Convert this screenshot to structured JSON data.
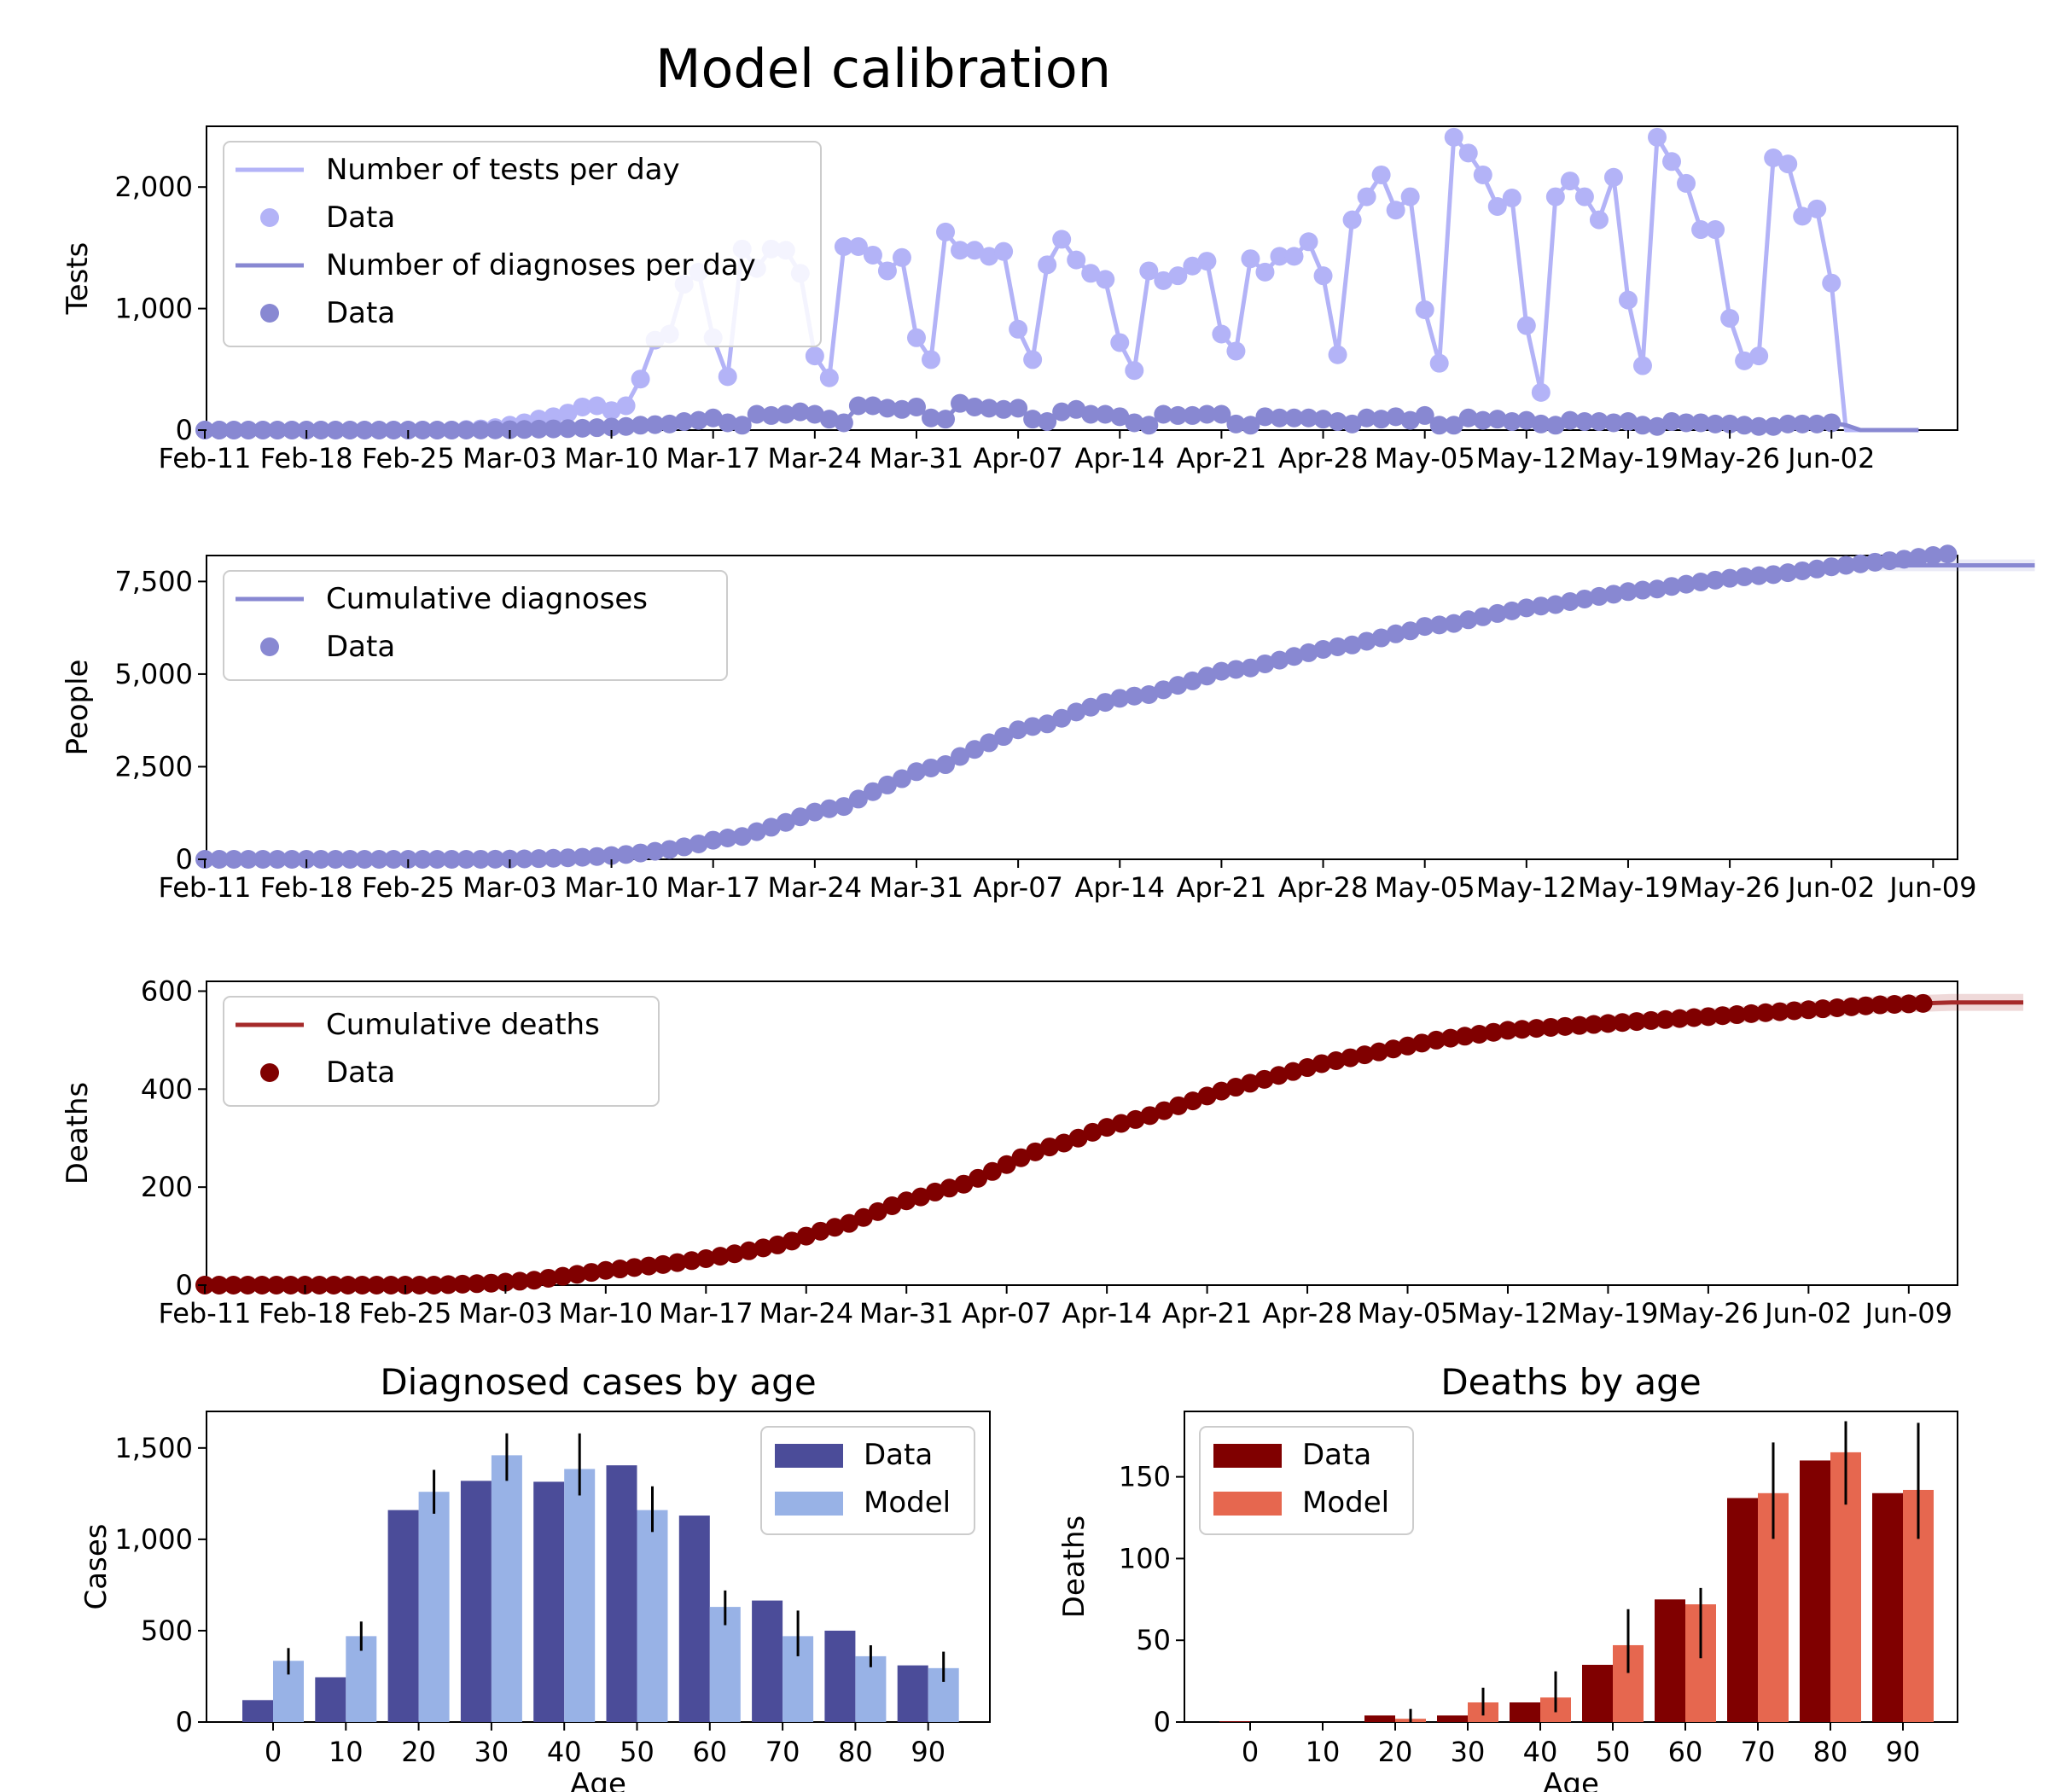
{
  "title": "Model calibration",
  "colors": {
    "tests": "#b3b3f7",
    "diagnoses": "#8888d2",
    "deaths_line": "#a52a2a",
    "deaths_data": "#800000",
    "age_cases_data": "#4b4c99",
    "age_cases_model": "#98b2e6",
    "age_deaths_data": "#800000",
    "age_deaths_model": "#e6674f"
  },
  "chart_data": [
    {
      "type": "line",
      "id": "tests",
      "ylabel": "Tests",
      "ylim": [
        0,
        2500
      ],
      "yticks": [
        0,
        1000,
        2000
      ],
      "ytick_labels": [
        "0",
        "1,000",
        "2,000"
      ],
      "xticks": [
        "Feb-11",
        "Feb-18",
        "Feb-25",
        "Mar-03",
        "Mar-10",
        "Mar-17",
        "Mar-24",
        "Mar-31",
        "Apr-07",
        "Apr-14",
        "Apr-21",
        "Apr-28",
        "May-05",
        "May-12",
        "May-19",
        "May-26",
        "Jun-02"
      ],
      "x_start": "Feb-11",
      "legend": [
        "Number of tests per day",
        "Data",
        "Number of diagnoses per day",
        "Data"
      ],
      "legend_loc": "upper left",
      "series": [
        {
          "name": "Number of tests per day",
          "values": [
            0,
            0,
            0,
            0,
            0,
            0,
            0,
            0,
            0,
            0,
            0,
            0,
            0,
            0,
            0,
            0,
            0,
            0,
            5,
            10,
            20,
            40,
            60,
            90,
            110,
            140,
            190,
            200,
            160,
            200,
            420,
            740,
            790,
            1200,
            1300,
            760,
            440,
            1490,
            1330,
            1490,
            1480,
            1290,
            610,
            430,
            1510,
            1510,
            1440,
            1310,
            1420,
            760,
            580,
            1630,
            1480,
            1480,
            1430,
            1470,
            830,
            580,
            1360,
            1570,
            1400,
            1290,
            1240,
            720,
            490,
            1310,
            1230,
            1270,
            1350,
            1390,
            790,
            650,
            1410,
            1300,
            1430,
            1430,
            1550,
            1270,
            620,
            1730,
            1920,
            2100,
            1810,
            1920,
            990,
            550,
            2410,
            2280,
            2100,
            1840,
            1910,
            860,
            310,
            1920,
            2050,
            1920,
            1730,
            2080,
            1070,
            530,
            2410,
            2210,
            2030,
            1650,
            1650,
            920,
            570,
            610,
            2240,
            2190,
            1760,
            1820,
            1210,
            0,
            0,
            0,
            0,
            0
          ]
        },
        {
          "name": "Number of diagnoses per day",
          "values": [
            0,
            0,
            0,
            0,
            0,
            0,
            0,
            0,
            0,
            0,
            0,
            0,
            0,
            0,
            0,
            0,
            0,
            0,
            0,
            1,
            2,
            3,
            5,
            8,
            10,
            12,
            15,
            20,
            25,
            30,
            40,
            45,
            50,
            70,
            80,
            100,
            60,
            40,
            130,
            120,
            130,
            150,
            130,
            90,
            60,
            200,
            200,
            180,
            170,
            190,
            100,
            90,
            220,
            190,
            180,
            170,
            180,
            90,
            70,
            150,
            170,
            130,
            130,
            110,
            60,
            40,
            130,
            120,
            120,
            130,
            130,
            50,
            40,
            110,
            100,
            100,
            100,
            90,
            70,
            50,
            100,
            90,
            110,
            80,
            120,
            40,
            40,
            100,
            80,
            90,
            70,
            80,
            50,
            40,
            80,
            70,
            70,
            60,
            70,
            40,
            30,
            70,
            60,
            60,
            50,
            50,
            40,
            30,
            30,
            50,
            50,
            50,
            60,
            40,
            0,
            0,
            0,
            0,
            0
          ]
        }
      ]
    },
    {
      "type": "line",
      "id": "cumdiag",
      "ylabel": "People",
      "ylim": [
        0,
        8200
      ],
      "yticks": [
        0,
        2500,
        5000,
        7500
      ],
      "ytick_labels": [
        "0",
        "2,500",
        "5,000",
        "7,500"
      ],
      "xticks": [
        "Feb-11",
        "Feb-18",
        "Feb-25",
        "Mar-03",
        "Mar-10",
        "Mar-17",
        "Mar-24",
        "Mar-31",
        "Apr-07",
        "Apr-14",
        "Apr-21",
        "Apr-28",
        "May-05",
        "May-12",
        "May-19",
        "May-26",
        "Jun-02",
        "Jun-09"
      ],
      "x_start": "Feb-11",
      "legend": [
        "Cumulative diagnoses",
        "Data"
      ],
      "legend_loc": "upper left",
      "series": [
        {
          "name": "Cumulative diagnoses",
          "values": [
            0,
            0,
            0,
            0,
            0,
            0,
            0,
            0,
            0,
            0,
            0,
            0,
            0,
            0,
            0,
            0,
            0,
            0,
            0,
            1,
            3,
            6,
            11,
            19,
            29,
            41,
            56,
            76,
            101,
            131,
            171,
            216,
            266,
            336,
            416,
            516,
            576,
            616,
            746,
            866,
            996,
            1146,
            1276,
            1366,
            1426,
            1626,
            1826,
            2006,
            2176,
            2366,
            2466,
            2556,
            2776,
            2966,
            3146,
            3316,
            3496,
            3586,
            3656,
            3806,
            3976,
            4106,
            4236,
            4346,
            4406,
            4446,
            4576,
            4696,
            4816,
            4946,
            5076,
            5126,
            5166,
            5276,
            5376,
            5476,
            5576,
            5666,
            5736,
            5786,
            5886,
            5976,
            6086,
            6166,
            6286,
            6326,
            6366,
            6466,
            6546,
            6636,
            6706,
            6786,
            6836,
            6876,
            6956,
            7026,
            7096,
            7156,
            7226,
            7266,
            7296,
            7366,
            7426,
            7486,
            7536,
            7586,
            7626,
            7656,
            7686,
            7736,
            7786,
            7836,
            7896,
            7936,
            7936,
            7936,
            7936,
            7936,
            7936,
            7936,
            7936,
            7936,
            7936,
            7936,
            7936,
            7936,
            7936
          ]
        },
        {
          "name": "Data",
          "values": [
            0,
            0,
            0,
            0,
            0,
            0,
            0,
            0,
            0,
            0,
            0,
            0,
            0,
            0,
            0,
            0,
            0,
            0,
            0,
            1,
            3,
            6,
            11,
            19,
            29,
            41,
            56,
            76,
            101,
            131,
            171,
            216,
            266,
            336,
            416,
            516,
            576,
            616,
            746,
            866,
            996,
            1146,
            1276,
            1366,
            1426,
            1626,
            1826,
            2006,
            2176,
            2366,
            2466,
            2556,
            2776,
            2966,
            3146,
            3316,
            3496,
            3586,
            3656,
            3806,
            3976,
            4106,
            4236,
            4346,
            4406,
            4446,
            4576,
            4696,
            4816,
            4946,
            5076,
            5126,
            5166,
            5276,
            5376,
            5476,
            5576,
            5666,
            5736,
            5786,
            5886,
            5976,
            6086,
            6166,
            6286,
            6326,
            6366,
            6466,
            6546,
            6636,
            6706,
            6786,
            6836,
            6876,
            6956,
            7026,
            7096,
            7156,
            7226,
            7266,
            7296,
            7366,
            7426,
            7486,
            7536,
            7586,
            7626,
            7656,
            7686,
            7736,
            7786,
            7836,
            7896,
            7936,
            7976,
            8020,
            8060,
            8100,
            8150,
            8200,
            8240
          ]
        }
      ]
    },
    {
      "type": "line",
      "id": "cumdeaths",
      "ylabel": "Deaths",
      "ylim": [
        0,
        620
      ],
      "yticks": [
        0,
        200,
        400,
        600
      ],
      "ytick_labels": [
        "0",
        "200",
        "400",
        "600"
      ],
      "xticks": [
        "Feb-11",
        "Feb-18",
        "Feb-25",
        "Mar-03",
        "Mar-10",
        "Mar-17",
        "Mar-24",
        "Mar-31",
        "Apr-07",
        "Apr-14",
        "Apr-21",
        "Apr-28",
        "May-05",
        "May-12",
        "May-19",
        "May-26",
        "Jun-02",
        "Jun-09"
      ],
      "x_start": "Feb-11",
      "legend": [
        "Cumulative deaths",
        "Data"
      ],
      "legend_loc": "upper left",
      "series": [
        {
          "name": "Cumulative deaths",
          "values": [
            0,
            0,
            0,
            0,
            0,
            0,
            0,
            0,
            0,
            0,
            0,
            0,
            0,
            0,
            0,
            0,
            0,
            1,
            2,
            3,
            4,
            6,
            8,
            10,
            14,
            18,
            22,
            26,
            30,
            33,
            36,
            39,
            42,
            46,
            50,
            54,
            59,
            64,
            70,
            76,
            82,
            90,
            100,
            110,
            118,
            126,
            138,
            150,
            162,
            172,
            180,
            190,
            198,
            206,
            218,
            232,
            246,
            260,
            272,
            282,
            290,
            300,
            312,
            322,
            330,
            338,
            346,
            356,
            366,
            376,
            386,
            396,
            404,
            412,
            420,
            428,
            436,
            444,
            452,
            458,
            464,
            470,
            476,
            482,
            488,
            494,
            500,
            504,
            508,
            512,
            516,
            520,
            522,
            524,
            526,
            528,
            530,
            532,
            534,
            536,
            538,
            540,
            542,
            544,
            546,
            548,
            550,
            552,
            554,
            556,
            558,
            560,
            562,
            564,
            566,
            568,
            570,
            572,
            573,
            574,
            575,
            576,
            577,
            577,
            577,
            577,
            577,
            577
          ]
        },
        {
          "name": "Data",
          "values": [
            0,
            0,
            0,
            0,
            0,
            0,
            0,
            0,
            0,
            0,
            0,
            0,
            0,
            0,
            0,
            0,
            0,
            1,
            2,
            3,
            4,
            6,
            8,
            10,
            14,
            18,
            22,
            26,
            30,
            33,
            36,
            39,
            42,
            46,
            50,
            54,
            59,
            64,
            70,
            76,
            82,
            90,
            100,
            110,
            118,
            126,
            138,
            150,
            162,
            172,
            180,
            190,
            198,
            206,
            218,
            232,
            246,
            260,
            272,
            282,
            290,
            300,
            312,
            322,
            330,
            338,
            346,
            356,
            366,
            376,
            386,
            396,
            404,
            412,
            420,
            428,
            436,
            444,
            452,
            458,
            464,
            470,
            476,
            482,
            488,
            494,
            500,
            504,
            508,
            512,
            516,
            520,
            522,
            524,
            526,
            528,
            530,
            532,
            534,
            536,
            538,
            540,
            542,
            544,
            546,
            548,
            550,
            552,
            554,
            556,
            558,
            560,
            562,
            564,
            566,
            568,
            570,
            572,
            573,
            574,
            575
          ]
        }
      ]
    },
    {
      "type": "bar",
      "id": "cases_age",
      "title": "Diagnosed cases by age",
      "xlabel": "Age",
      "ylabel": "Cases",
      "categories": [
        "0",
        "10",
        "20",
        "30",
        "40",
        "50",
        "60",
        "70",
        "80",
        "90"
      ],
      "ylim": [
        0,
        1700
      ],
      "yticks": [
        0,
        500,
        1000,
        1500
      ],
      "legend": [
        "Data",
        "Model"
      ],
      "legend_loc": "upper right",
      "series": [
        {
          "name": "Data",
          "values": [
            120,
            245,
            1160,
            1320,
            1315,
            1405,
            1130,
            665,
            500,
            310
          ]
        },
        {
          "name": "Model",
          "values": [
            335,
            470,
            1260,
            1460,
            1385,
            1160,
            630,
            470,
            360,
            295
          ],
          "err_low": [
            260,
            390,
            1140,
            1320,
            1240,
            1040,
            530,
            360,
            300,
            220
          ],
          "err_high": [
            405,
            550,
            1380,
            1580,
            1580,
            1290,
            720,
            610,
            420,
            385
          ]
        }
      ]
    },
    {
      "type": "bar",
      "id": "deaths_age",
      "title": "Deaths by age",
      "xlabel": "Age",
      "ylabel": "Deaths",
      "categories": [
        "0",
        "10",
        "20",
        "30",
        "40",
        "50",
        "60",
        "70",
        "80",
        "90"
      ],
      "ylim": [
        0,
        190
      ],
      "yticks": [
        0,
        50,
        100,
        150
      ],
      "legend": [
        "Data",
        "Model"
      ],
      "legend_loc": "upper left",
      "series": [
        {
          "name": "Data",
          "values": [
            0.5,
            0,
            4,
            4,
            12,
            35,
            75,
            137,
            160,
            140
          ]
        },
        {
          "name": "Model",
          "values": [
            0,
            0,
            2,
            12,
            15,
            47,
            72,
            140,
            165,
            142
          ],
          "err_low": [
            0,
            0,
            0,
            4,
            6,
            30,
            39,
            112,
            133,
            112
          ],
          "err_high": [
            0,
            0,
            8,
            21,
            31,
            69,
            82,
            171,
            184,
            183
          ]
        }
      ]
    }
  ]
}
